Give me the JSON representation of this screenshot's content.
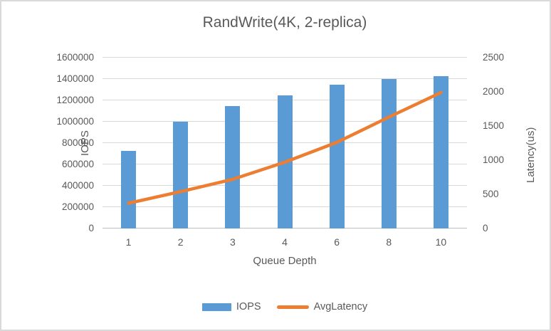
{
  "title": "RandWrite(4K, 2-replica)",
  "colors": {
    "bar_fill": "#5B9BD5",
    "line_stroke": "#ED7D31",
    "text": "#595959",
    "gridline": "#D9D9D9",
    "frame_border": "#D9D9D9",
    "background": "#FFFFFF"
  },
  "chart_data": {
    "type": "bar",
    "subtype": "combo-bar-line-dual-axis",
    "title": "RandWrite(4K, 2-replica)",
    "categories": [
      "1",
      "2",
      "3",
      "4",
      "6",
      "8",
      "10"
    ],
    "series": [
      {
        "name": "IOPS",
        "type": "bar",
        "axis": "left",
        "color": "#5B9BD5",
        "values": [
          730000,
          1000000,
          1150000,
          1250000,
          1350000,
          1400000,
          1430000
        ]
      },
      {
        "name": "AvgLatency",
        "type": "line",
        "axis": "right",
        "color": "#ED7D31",
        "values": [
          370,
          540,
          720,
          970,
          1260,
          1630,
          1990
        ]
      }
    ],
    "xlabel": "Queue Depth",
    "ylabel_left": "IOPS",
    "ylabel_right": "Latency(us)",
    "left_axis": {
      "min": 0,
      "max": 1600000,
      "step": 200000,
      "tick_labels": [
        "0",
        "200000",
        "400000",
        "600000",
        "800000",
        "1000000",
        "1200000",
        "1400000",
        "1600000"
      ]
    },
    "right_axis": {
      "min": 0,
      "max": 2500,
      "step": 500,
      "tick_labels": [
        "0",
        "500",
        "1000",
        "1500",
        "2000",
        "2500"
      ]
    },
    "grid": true,
    "legend_position": "bottom",
    "legend": [
      "IOPS",
      "AvgLatency"
    ]
  }
}
